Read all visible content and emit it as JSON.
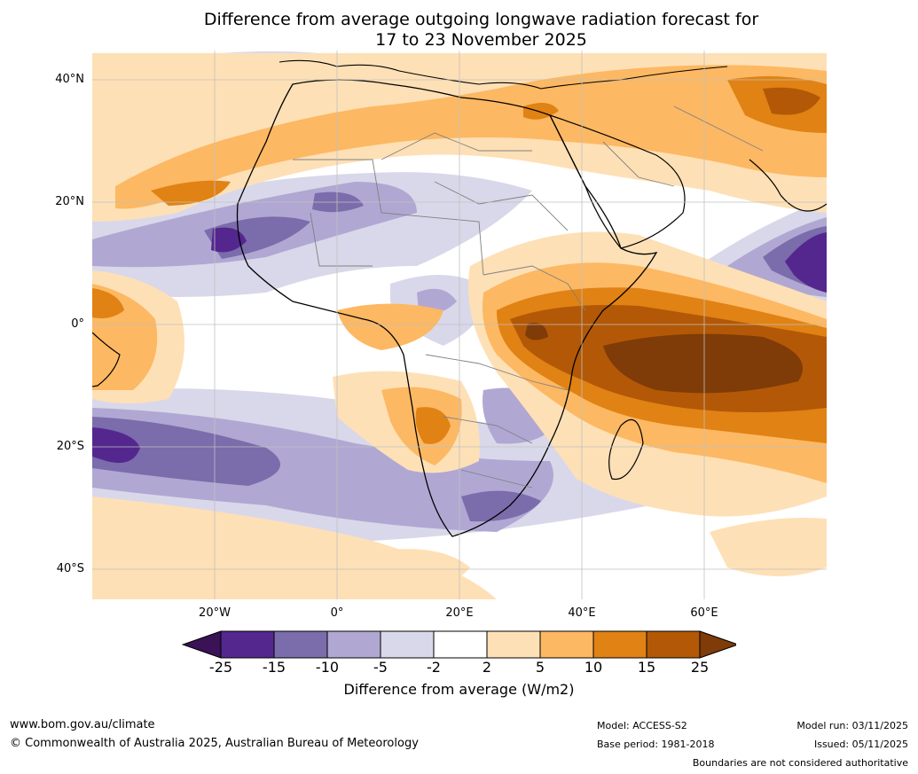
{
  "title": {
    "line1": "Difference from average outgoing longwave radiation forecast for",
    "line2": "17 to 23 November 2025"
  },
  "axes": {
    "lat_labels": [
      "40°N",
      "20°N",
      "0°",
      "20°S",
      "40°S"
    ],
    "lon_labels": [
      "20°W",
      "0°",
      "20°E",
      "40°E",
      "60°E"
    ]
  },
  "legend": {
    "ticks": [
      "-25",
      "-15",
      "-10",
      "-5",
      "-2",
      "2",
      "5",
      "10",
      "15",
      "25"
    ],
    "colors": [
      "#3a1255",
      "#54278f",
      "#7b6cab",
      "#b0a8d2",
      "#d9d8ea",
      "#ffffff",
      "#fee0b6",
      "#fdb863",
      "#e08214",
      "#b35806",
      "#7f3b08"
    ],
    "label": "Difference from average (W/m2)"
  },
  "footer": {
    "website": "www.bom.gov.au/climate",
    "copyright": "© Commonwealth of Australia 2025, Australian Bureau of Meteorology",
    "model": "Model: ACCESS-S2",
    "base_period": "Base period: 1981-2018",
    "model_run": "Model run: 03/11/2025",
    "issued": "Issued: 05/11/2025",
    "boundaries": "Boundaries are not considered authoritative"
  }
}
